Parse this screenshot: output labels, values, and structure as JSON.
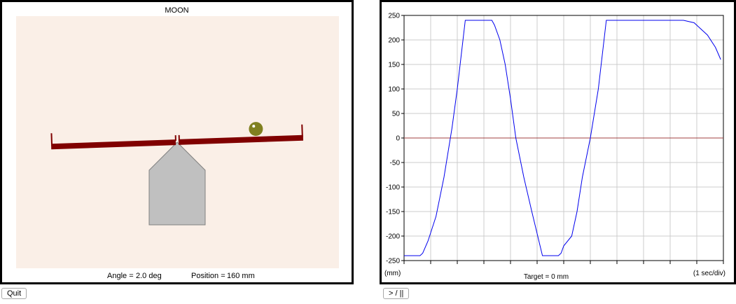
{
  "simulation": {
    "title": "MOON",
    "angle_label": "Angle =",
    "angle_value": "2.0 deg",
    "position_label": "Position =",
    "position_value": "160 mm",
    "angle_deg": 2.0,
    "position_mm": 160,
    "colors": {
      "background": "#faefe7",
      "beam": "#800000",
      "ball": "#808020",
      "fulcrum": "#c0c0c0",
      "fulcrum_edge": "#808080"
    }
  },
  "plot": {
    "y_unit_label": "(mm)",
    "x_unit_label": "(1 sec/div)",
    "target_label": "Target = 0 mm",
    "colors": {
      "trace": "#0000ee",
      "target": "#a04040",
      "grid": "#cccccc"
    }
  },
  "chart_data": {
    "type": "line",
    "xlabel": "",
    "ylabel": "(mm)",
    "ylim": [
      -250,
      250
    ],
    "xlim": [
      0,
      12
    ],
    "y_ticks": [
      250,
      200,
      150,
      100,
      50,
      0,
      -50,
      -100,
      -150,
      -200,
      -250
    ],
    "x_divisions": 12,
    "grid": true,
    "target": 0,
    "series": [
      {
        "name": "",
        "x": [
          0,
          0.6,
          0.7,
          0.9,
          1.2,
          1.5,
          1.8,
          2.0,
          2.3,
          2.6,
          2.8,
          3.3,
          3.4,
          3.6,
          3.8,
          4.0,
          4.2,
          4.5,
          4.8,
          5.2,
          5.4,
          5.6,
          5.8,
          5.9,
          6.0,
          6.3,
          6.5,
          6.7,
          7.0,
          7.3,
          7.6,
          8.0,
          8.2,
          8.5,
          8.8,
          9.5,
          10.0,
          10.2,
          10.5,
          10.9,
          11.1,
          11.4,
          11.7,
          11.9
        ],
        "y": [
          -240,
          -240,
          -235,
          -210,
          -160,
          -80,
          20,
          100,
          240,
          240,
          240,
          240,
          230,
          200,
          150,
          80,
          0,
          -80,
          -150,
          -240,
          -240,
          -240,
          -240,
          -235,
          -220,
          -200,
          -150,
          -80,
          0,
          100,
          240,
          240,
          240,
          240,
          240,
          240,
          240,
          240,
          240,
          235,
          225,
          210,
          185,
          160
        ]
      }
    ]
  }
}
